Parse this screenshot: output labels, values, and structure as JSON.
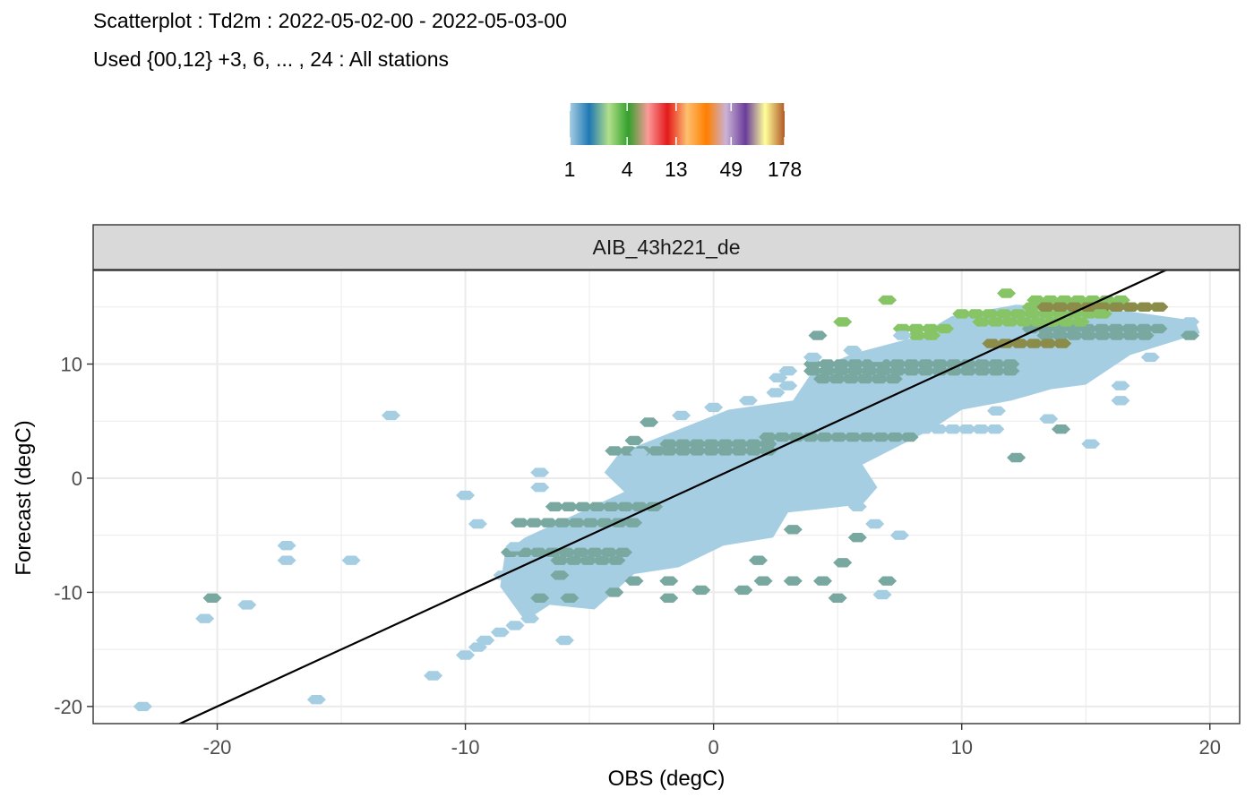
{
  "title": "Scatterplot : Td2m : 2022-05-02-00 - 2022-05-03-00",
  "subtitle": "Used {00,12} +3, 6, ... , 24 : All stations",
  "chart_data": {
    "type": "hexbin-scatter",
    "panel": "AIB_43h221_de",
    "xlabel": "OBS (degC)",
    "ylabel": "Forecast (degC)",
    "xlim": [
      -25,
      21.2
    ],
    "ylim": [
      -21.5,
      18.2
    ],
    "xticks": [
      "-20",
      "-10",
      "0",
      "10",
      "20"
    ],
    "yticks": [
      "-20",
      "-10",
      "0",
      "10"
    ],
    "grid": true,
    "reference_line": {
      "slope": 1,
      "intercept": 0,
      "color": "#000000"
    },
    "legend": {
      "position": "top",
      "type": "colorbar",
      "labels": [
        "1",
        "4",
        "13",
        "49",
        "178"
      ],
      "colors": [
        "#a6cee3",
        "#1f78b4",
        "#b2df8a",
        "#33a02c",
        "#fb9a99",
        "#e31a1c",
        "#fdbf6f",
        "#ff7f00",
        "#cab2d6",
        "#6a3d9a",
        "#ffff99",
        "#b15928"
      ]
    },
    "bins": [
      {
        "x": -23,
        "y": -20,
        "count": 1
      },
      {
        "x": -16,
        "y": -19.4,
        "count": 1
      },
      {
        "x": -11.3,
        "y": -17.3,
        "count": 1
      },
      {
        "x": -20.5,
        "y": -12.3,
        "count": 1
      },
      {
        "x": -18.8,
        "y": -11.1,
        "count": 1
      },
      {
        "x": -20.2,
        "y": -10.5,
        "count": 2
      },
      {
        "x": -17.2,
        "y": -7.2,
        "count": 1
      },
      {
        "x": -14.6,
        "y": -7.2,
        "count": 1
      },
      {
        "x": -17.2,
        "y": -5.9,
        "count": 1
      },
      {
        "x": -13,
        "y": 5.5,
        "count": 1
      },
      {
        "x": -10,
        "y": -15.5,
        "count": 1
      },
      {
        "x": -9.5,
        "y": -14.8,
        "count": 1
      },
      {
        "x": -9.2,
        "y": -14.2,
        "count": 1
      },
      {
        "x": -8.6,
        "y": -13.5,
        "count": 1
      },
      {
        "x": -8.0,
        "y": -12.9,
        "count": 1
      },
      {
        "x": -7.4,
        "y": -12.3,
        "count": 1
      },
      {
        "x": -6,
        "y": -14.2,
        "count": 1
      },
      {
        "x": -10,
        "y": -1.5,
        "count": 1
      },
      {
        "x": -7,
        "y": 0.5,
        "count": 1
      },
      {
        "x": -7,
        "y": -0.8,
        "count": 1
      },
      {
        "x": -9.5,
        "y": -4,
        "count": 1
      },
      {
        "x": -8,
        "y": -6,
        "count": 1
      },
      {
        "x": -8.5,
        "y": -8.5,
        "count": 1
      },
      {
        "x": -7,
        "y": -10.5,
        "count": 2
      },
      {
        "x": -5.8,
        "y": -10.5,
        "count": 2
      },
      {
        "x": -6.2,
        "y": -8.5,
        "count": 2
      },
      {
        "x": -4,
        "y": -10,
        "count": 2
      },
      {
        "x": -3.2,
        "y": -9,
        "count": 2
      },
      {
        "x": -1.8,
        "y": -9,
        "count": 2
      },
      {
        "x": -1.8,
        "y": -10.5,
        "count": 2
      },
      {
        "x": -0.5,
        "y": -9.8,
        "count": 2
      },
      {
        "x": 1.2,
        "y": -9.8,
        "count": 2
      },
      {
        "x": 2,
        "y": -9,
        "count": 2
      },
      {
        "x": 3.2,
        "y": -9,
        "count": 2
      },
      {
        "x": 4.4,
        "y": -9,
        "count": 2
      },
      {
        "x": 5,
        "y": -10.5,
        "count": 2
      },
      {
        "x": 5.2,
        "y": -7.4,
        "count": 2
      },
      {
        "x": 7.0,
        "y": -9,
        "count": 2
      },
      {
        "x": 6.8,
        "y": -10.2,
        "count": 1
      },
      {
        "x": 1.8,
        "y": -7.2,
        "count": 2
      },
      {
        "x": 3.2,
        "y": -4.5,
        "count": 2
      },
      {
        "x": 5.8,
        "y": -5.2,
        "count": 2
      },
      {
        "x": 5.8,
        "y": -2.5,
        "count": 1
      },
      {
        "x": 6.5,
        "y": -4,
        "count": 1
      },
      {
        "x": 7.5,
        "y": -5,
        "count": 1
      },
      {
        "x": -3,
        "y": 2.2,
        "count": 1
      },
      {
        "x": -3.2,
        "y": 3.3,
        "count": 2
      },
      {
        "x": -2.6,
        "y": 4.9,
        "count": 2
      },
      {
        "x": -1.3,
        "y": 5.5,
        "count": 1
      },
      {
        "x": 0,
        "y": 6.2,
        "count": 1
      },
      {
        "x": 1.4,
        "y": 6.8,
        "count": 1
      },
      {
        "x": 2.5,
        "y": 7.5,
        "count": 1
      },
      {
        "x": 3.0,
        "y": 8.1,
        "count": 1
      },
      {
        "x": 2.6,
        "y": 8.8,
        "count": 1
      },
      {
        "x": 3,
        "y": 9.4,
        "count": 1
      },
      {
        "x": 4,
        "y": 10.6,
        "count": 1
      },
      {
        "x": 5.6,
        "y": 11.2,
        "count": 1
      },
      {
        "x": 6.6,
        "y": 10.6,
        "count": 1
      },
      {
        "x": 7.6,
        "y": 12.5,
        "count": 1
      },
      {
        "x": 4.2,
        "y": 12.5,
        "count": 2
      },
      {
        "x": 5.2,
        "y": 13.7,
        "count": 4
      },
      {
        "x": 7.0,
        "y": 15.6,
        "count": 4
      },
      {
        "x": 11.8,
        "y": 16.2,
        "count": 4
      },
      {
        "x": 15.6,
        "y": 14.4,
        "count": 4
      },
      {
        "x": 13.5,
        "y": 5.2,
        "count": 1
      },
      {
        "x": 11.4,
        "y": 5.9,
        "count": 1
      },
      {
        "x": 14,
        "y": 4.3,
        "count": 2
      },
      {
        "x": 12.2,
        "y": 1.8,
        "count": 2
      },
      {
        "x": 15.2,
        "y": 3.0,
        "count": 1
      },
      {
        "x": 16.4,
        "y": 8.1,
        "count": 1
      },
      {
        "x": 16.4,
        "y": 6.8,
        "count": 1
      },
      {
        "x": 17.6,
        "y": 10.6,
        "count": 1
      },
      {
        "x": 19.2,
        "y": 12.5,
        "count": 2
      },
      {
        "x": 19.2,
        "y": 13.7,
        "count": 1
      }
    ],
    "dense_bands": [
      {
        "x_from": -1.8,
        "x_to": 2.2,
        "y": 2.4,
        "count": 2
      },
      {
        "x_from": -1.8,
        "x_to": 2.2,
        "y": 3.0,
        "count": 2
      },
      {
        "x_from": -4.0,
        "x_to": -2.2,
        "y": 2.4,
        "count": 2
      },
      {
        "x_from": 2.2,
        "x_to": 8.0,
        "y": 3.6,
        "count": 2
      },
      {
        "x_from": 8.5,
        "x_to": 11.8,
        "y": 4.3,
        "count": 1
      },
      {
        "x_from": -6.4,
        "x_to": -2.4,
        "y": -2.5,
        "count": 2
      },
      {
        "x_from": -7.8,
        "x_to": -2.8,
        "y": -3.9,
        "count": 2
      },
      {
        "x_from": -8.2,
        "x_to": -3.6,
        "y": -6.5,
        "count": 2
      },
      {
        "x_from": -6.2,
        "x_to": -3.8,
        "y": -7.2,
        "count": 2
      },
      {
        "x_from": 4.0,
        "x_to": 12.2,
        "y": 9.4,
        "count": 2
      },
      {
        "x_from": 4.0,
        "x_to": 12.2,
        "y": 10.0,
        "count": 2
      },
      {
        "x_from": 4.4,
        "x_to": 7.4,
        "y": 8.7,
        "count": 2
      },
      {
        "x_from": 13.4,
        "x_to": 17.6,
        "y": 12.5,
        "count": 2
      },
      {
        "x_from": 12.8,
        "x_to": 18.2,
        "y": 13.1,
        "count": 2
      },
      {
        "x_from": 8.2,
        "x_to": 9.2,
        "y": 12.5,
        "count": 4
      },
      {
        "x_from": 7.6,
        "x_to": 9.6,
        "y": 13.1,
        "count": 4
      },
      {
        "x_from": 10.8,
        "x_to": 15.2,
        "y": 13.7,
        "count": 4
      },
      {
        "x_from": 10.0,
        "x_to": 15.8,
        "y": 14.4,
        "count": 4
      },
      {
        "x_from": 12.8,
        "x_to": 18.2,
        "y": 15.0,
        "count": 4
      },
      {
        "x_from": 13.0,
        "x_to": 16.6,
        "y": 15.6,
        "count": 4
      },
      {
        "x_from": 11.2,
        "x_to": 14.6,
        "y": 11.8,
        "count": 7
      },
      {
        "x_from": 13.4,
        "x_to": 18.0,
        "y": 15.0,
        "count": 7
      }
    ],
    "density_region": {
      "count": 1,
      "polygon": [
        [
          -10.2,
          -16.2
        ],
        [
          -7.6,
          -12.5
        ],
        [
          -8.6,
          -9.5
        ],
        [
          -8.4,
          -6.5
        ],
        [
          -7.6,
          -5.2
        ],
        [
          -3.6,
          -1.2
        ],
        [
          -4.4,
          0.5
        ],
        [
          -3.8,
          2.2
        ],
        [
          0.6,
          6.0
        ],
        [
          3.2,
          6.8
        ],
        [
          4.0,
          9.4
        ],
        [
          5.6,
          10.9
        ],
        [
          8.2,
          12.4
        ],
        [
          9.6,
          14.2
        ],
        [
          12.2,
          15.2
        ],
        [
          16.8,
          14.6
        ],
        [
          19.4,
          13.8
        ],
        [
          19.6,
          12.7
        ],
        [
          16.8,
          10.8
        ],
        [
          15.0,
          8.2
        ],
        [
          13.6,
          7.8
        ],
        [
          12.0,
          6.8
        ],
        [
          10.0,
          6.0
        ],
        [
          8.8,
          4.3
        ],
        [
          6.0,
          1.2
        ],
        [
          6.6,
          -0.8
        ],
        [
          6.0,
          -2.3
        ],
        [
          3.0,
          -3.0
        ],
        [
          2.4,
          -5.2
        ],
        [
          0.4,
          -5.9
        ],
        [
          -1.4,
          -7.8
        ],
        [
          -3.2,
          -8.4
        ],
        [
          -4.8,
          -11.5
        ],
        [
          -6.6,
          -11.1
        ]
      ]
    }
  }
}
